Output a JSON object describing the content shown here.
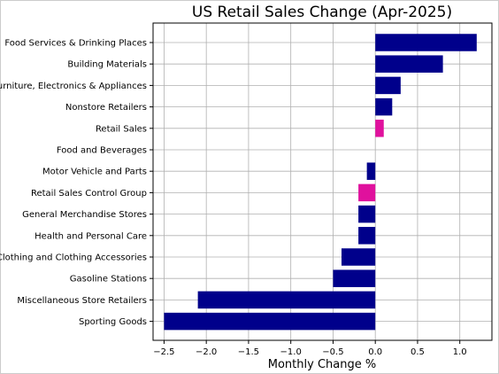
{
  "chart_data": {
    "type": "bar",
    "orientation": "horizontal",
    "title": "US Retail Sales Change (Apr-2025)",
    "xlabel": "Monthly Change %",
    "ylabel": "",
    "xlim": [
      -2.63,
      1.38
    ],
    "xticks": [
      -2.5,
      -2.0,
      -1.5,
      -1.0,
      -0.5,
      0.0,
      0.5,
      1.0
    ],
    "xtick_labels": [
      "−2.5",
      "−2.0",
      "−1.5",
      "−1.0",
      "−0.5",
      "0.0",
      "0.5",
      "1.0"
    ],
    "grid": true,
    "colors": {
      "default": "#00008b",
      "highlight": "#e0119d"
    },
    "categories": [
      "Food Services & Drinking Places",
      "Building Materials",
      "Furniture, Electronics & Appliances",
      "Nonstore Retailers",
      "Retail Sales",
      "Food and Beverages",
      "Motor Vehicle and Parts",
      "Retail Sales Control Group",
      "General Merchandise Stores",
      "Health and Personal Care",
      "Clothing and Clothing Accessories",
      "Gasoline Stations",
      "Miscellaneous Store Retailers",
      "Sporting Goods"
    ],
    "values": [
      1.2,
      0.8,
      0.3,
      0.2,
      0.1,
      0.0,
      -0.1,
      -0.2,
      -0.2,
      -0.2,
      -0.4,
      -0.5,
      -2.1,
      -2.5
    ],
    "highlighted": [
      false,
      false,
      false,
      false,
      true,
      false,
      false,
      true,
      false,
      false,
      false,
      false,
      false,
      false
    ]
  }
}
